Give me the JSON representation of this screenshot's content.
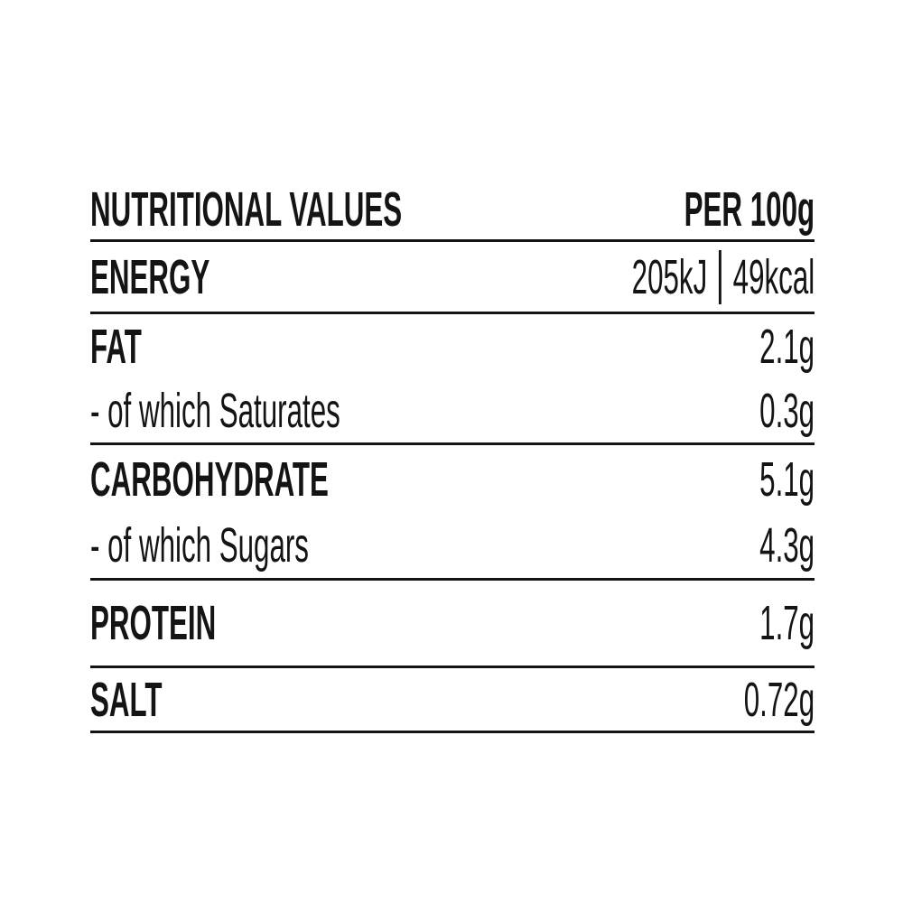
{
  "colors": {
    "background": "#ffffff",
    "text": "#141414",
    "rule": "#141414"
  },
  "table": {
    "header": {
      "title": "NUTRITIONAL VALUES",
      "per_column": "PER 100g"
    },
    "energy": {
      "label": "ENERGY",
      "kj": "205kJ",
      "kcal": "49kcal"
    },
    "nutrients": [
      {
        "label": "FAT",
        "value": "2.1g"
      },
      {
        "label": "- of which Saturates",
        "value": "0.3g"
      },
      {
        "label": "CARBOHYDRATE",
        "value": "5.1g"
      },
      {
        "label": "- of which Sugars",
        "value": "4.3g"
      },
      {
        "label": "PROTEIN",
        "value": "1.7g"
      },
      {
        "label": "SALT",
        "value": "0.72g"
      }
    ]
  }
}
